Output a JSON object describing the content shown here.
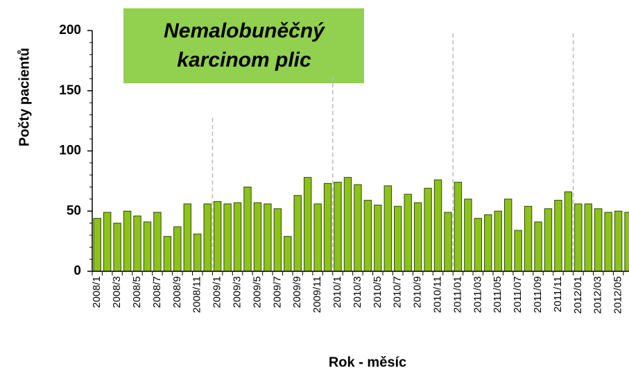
{
  "chart_data": {
    "type": "bar",
    "title": [
      "Nemalobuněčný",
      "karcinom plic"
    ],
    "x_label": "Rok - měsíc",
    "y_label": "Počty pacientů",
    "categories": [
      "2008/1",
      null,
      "2008/3",
      null,
      "2008/5",
      null,
      "2008/7",
      null,
      "2008/9",
      null,
      "2008/11",
      null,
      "2009/1",
      null,
      "2009/3",
      null,
      "2009/5",
      null,
      "2009/7",
      null,
      "2009/9",
      null,
      "2009/11",
      null,
      "2010/1",
      null,
      "2010/3",
      null,
      "2010/5",
      null,
      "2010/7",
      null,
      "2010/9",
      null,
      "2010/11",
      null,
      "2011/01",
      null,
      "2011/03",
      null,
      "2011/05",
      null,
      "2011/07",
      null,
      "2011/09",
      null,
      "2011/11",
      null,
      "2012/01",
      null,
      "2012/03",
      null,
      "2012/05",
      null
    ],
    "values": [
      44,
      49,
      40,
      50,
      46,
      41,
      49,
      29,
      37,
      56,
      31,
      56,
      58,
      56,
      57,
      70,
      57,
      56,
      52,
      29,
      63,
      78,
      56,
      73,
      74,
      78,
      72,
      59,
      55,
      71,
      54,
      64,
      57,
      69,
      76,
      49,
      74,
      60,
      44,
      47,
      50,
      60,
      34,
      54,
      41,
      52,
      59,
      66,
      56,
      56,
      52,
      49,
      50,
      49
    ],
    "color": "#8cc21a",
    "ylim": [
      0,
      200
    ],
    "yticks": [
      0,
      50,
      100,
      150,
      200
    ]
  }
}
